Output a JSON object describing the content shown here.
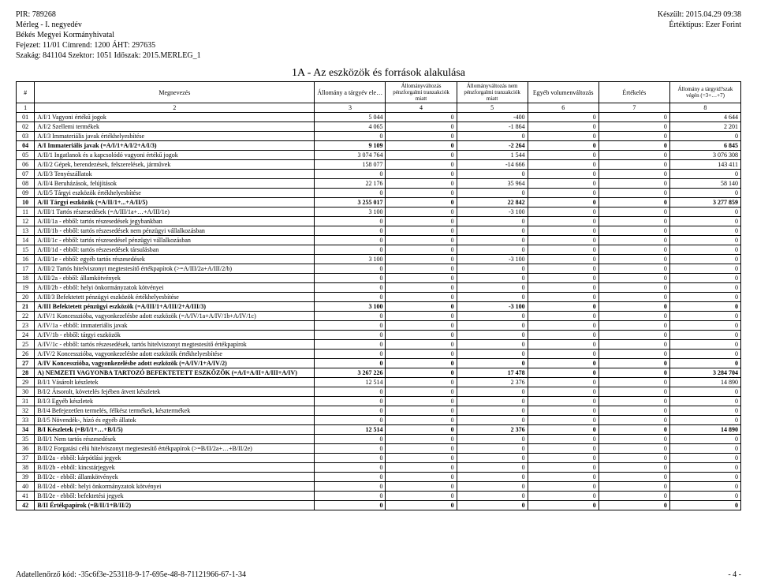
{
  "header": {
    "left": {
      "pir": "PIR: 789268",
      "merleg": "Mérleg - I. negyedév",
      "org": "Békés Megyei Kormányhivatal",
      "fejezet": "Fejezet: 11/01 Címrend: 1200 ÁHT: 297635",
      "szakag": "Szakág: 841104 Szektor: 1051 Időszak: 2015.MERLEG_1"
    },
    "right": {
      "keszult": "Készült: 2015.04.29 09:38",
      "ertektipus": "Értéktípus: Ezer Forint"
    }
  },
  "table": {
    "title": "1A - Az eszközök és források alakulása",
    "head": {
      "c1": "#",
      "c2": "Megnevezés",
      "c3": "Állomány a tárgyév elején",
      "c4": "Állományváltozás pénzforgalmi tranzakciók miatt",
      "c5": "Állományváltozás nem pénzforgalmi tranzakciók miatt",
      "c6": "Egyéb volumenváltozás",
      "c7": "Értékelés",
      "c8": "Állomány a tárgyid?szak végén (=3+…+7)"
    },
    "hnums": {
      "n1": "1",
      "n2": "2",
      "n3": "3",
      "n4": "4",
      "n5": "5",
      "n6": "6",
      "n7": "7",
      "n8": "8"
    },
    "rows": [
      {
        "id": "01",
        "desc": "A/I/1 Vagyoni értékű jogok",
        "v": [
          "5 044",
          "0",
          "-400",
          "0",
          "0",
          "4 644"
        ],
        "bold": false
      },
      {
        "id": "02",
        "desc": "A/I/2 Szellemi termékek",
        "v": [
          "4 065",
          "0",
          "-1 864",
          "0",
          "0",
          "2 201"
        ],
        "bold": false
      },
      {
        "id": "03",
        "desc": "A/I/3 Immateriális javak értékhelyesbítése",
        "v": [
          "0",
          "0",
          "0",
          "0",
          "0",
          "0"
        ],
        "bold": false
      },
      {
        "id": "04",
        "desc": "A/I Immateriális javak (=A/I/1+A/I/2+A/I/3)",
        "v": [
          "9 109",
          "0",
          "-2 264",
          "0",
          "0",
          "6 845"
        ],
        "bold": true
      },
      {
        "id": "05",
        "desc": "A/II/1 Ingatlanok és a kapcsolódó vagyoni értékű jogok",
        "v": [
          "3 074 764",
          "0",
          "1 544",
          "0",
          "0",
          "3 076 308"
        ],
        "bold": false
      },
      {
        "id": "06",
        "desc": "A/II/2 Gépek, berendezések, felszerelések, járművek",
        "v": [
          "158 077",
          "0",
          "-14 666",
          "0",
          "0",
          "143 411"
        ],
        "bold": false
      },
      {
        "id": "07",
        "desc": "A/II/3 Tenyészállatok",
        "v": [
          "0",
          "0",
          "0",
          "0",
          "0",
          "0"
        ],
        "bold": false
      },
      {
        "id": "08",
        "desc": "A/II/4 Beruházások, felújítások",
        "v": [
          "22 176",
          "0",
          "35 964",
          "0",
          "0",
          "58 140"
        ],
        "bold": false
      },
      {
        "id": "09",
        "desc": "A/II/5 Tárgyi eszközök értékhelyesbítése",
        "v": [
          "0",
          "0",
          "0",
          "0",
          "0",
          "0"
        ],
        "bold": false
      },
      {
        "id": "10",
        "desc": "A/II Tárgyi eszközök (=A/II/1+...+A/II/5)",
        "v": [
          "3 255 017",
          "0",
          "22 842",
          "0",
          "0",
          "3 277 859"
        ],
        "bold": true
      },
      {
        "id": "11",
        "desc": "A/III/1 Tartós részesedések (=A/III/1a+…+A/III/1e)",
        "v": [
          "3 100",
          "0",
          "-3 100",
          "0",
          "0",
          "0"
        ],
        "bold": false
      },
      {
        "id": "12",
        "desc": "A/III/1a - ebből: tartós részesedések jegybankban",
        "v": [
          "0",
          "0",
          "0",
          "0",
          "0",
          "0"
        ],
        "bold": false
      },
      {
        "id": "13",
        "desc": "A/III/1b - ebből: tartós részesedések nem pénzügyi vállalkozásban",
        "v": [
          "0",
          "0",
          "0",
          "0",
          "0",
          "0"
        ],
        "bold": false
      },
      {
        "id": "14",
        "desc": "A/III/1c - ebből: tartós részesedésel pénzügyi vállalkozásban",
        "v": [
          "0",
          "0",
          "0",
          "0",
          "0",
          "0"
        ],
        "bold": false
      },
      {
        "id": "15",
        "desc": "A/III/1d - ebből: tartós részesedések társulásban",
        "v": [
          "0",
          "0",
          "0",
          "0",
          "0",
          "0"
        ],
        "bold": false
      },
      {
        "id": "16",
        "desc": "A/III/1e - ebből: egyéb tartós részesedések",
        "v": [
          "3 100",
          "0",
          "-3 100",
          "0",
          "0",
          "0"
        ],
        "bold": false
      },
      {
        "id": "17",
        "desc": "A/III/2 Tartós hitelviszonyt megtestesítő értékpapírok (>=A/III/2a+A/III/2/b)",
        "v": [
          "0",
          "0",
          "0",
          "0",
          "0",
          "0"
        ],
        "bold": false
      },
      {
        "id": "18",
        "desc": "A/III/2a - ebből: államkötvények",
        "v": [
          "0",
          "0",
          "0",
          "0",
          "0",
          "0"
        ],
        "bold": false
      },
      {
        "id": "19",
        "desc": "A/III/2b - ebből: helyi önkormányzatok kötvényei",
        "v": [
          "0",
          "0",
          "0",
          "0",
          "0",
          "0"
        ],
        "bold": false
      },
      {
        "id": "20",
        "desc": "A/III/3 Befektetett pénzügyi eszközök értékhelyesbítése",
        "v": [
          "0",
          "0",
          "0",
          "0",
          "0",
          "0"
        ],
        "bold": false
      },
      {
        "id": "21",
        "desc": "A/III Befektetett pénzügyi eszközök (=A/III/1+A/III/2+A/III/3)",
        "v": [
          "3 100",
          "0",
          "-3 100",
          "0",
          "0",
          "0"
        ],
        "bold": true
      },
      {
        "id": "22",
        "desc": "A/IV/1 Koncesszióba, vagyonkezelésbe adott eszközök (=A/IV/1a+A/IV/1b+A/IV/1c)",
        "v": [
          "0",
          "0",
          "0",
          "0",
          "0",
          "0"
        ],
        "bold": false
      },
      {
        "id": "23",
        "desc": "A/IV/1a - ebből: immateriális javak",
        "v": [
          "0",
          "0",
          "0",
          "0",
          "0",
          "0"
        ],
        "bold": false
      },
      {
        "id": "24",
        "desc": "A/IV/1b - ebből: tárgyi eszközök",
        "v": [
          "0",
          "0",
          "0",
          "0",
          "0",
          "0"
        ],
        "bold": false
      },
      {
        "id": "25",
        "desc": "A/IV/1c - ebből: tartós részesedések, tartós hitelviszonyt megtestesítő értékpapírok",
        "v": [
          "0",
          "0",
          "0",
          "0",
          "0",
          "0"
        ],
        "bold": false
      },
      {
        "id": "26",
        "desc": "A/IV/2 Koncesszióba, vagyonkezelésbe adott eszközök értékhelyesbítése",
        "v": [
          "0",
          "0",
          "0",
          "0",
          "0",
          "0"
        ],
        "bold": false
      },
      {
        "id": "27",
        "desc": "A/IV Koncesszióba, vagyonkezelésbe adott eszközök (=A/IV/1+A/IV/2)",
        "v": [
          "0",
          "0",
          "0",
          "0",
          "0",
          "0"
        ],
        "bold": true
      },
      {
        "id": "28",
        "desc": "A) NEMZETI VAGYONBA TARTOZÓ BEFEKTETETT ESZKÖZÖK (=A/I+A/II+A/III+A/IV)",
        "v": [
          "3 267 226",
          "0",
          "17 478",
          "0",
          "0",
          "3 284 704"
        ],
        "bold": true
      },
      {
        "id": "29",
        "desc": "B/I/1 Vásárolt készletek",
        "v": [
          "12 514",
          "0",
          "2 376",
          "0",
          "0",
          "14 890"
        ],
        "bold": false
      },
      {
        "id": "30",
        "desc": "B/I/2 Átsorolt, követelés fejében átvett készletek",
        "v": [
          "0",
          "0",
          "0",
          "0",
          "0",
          "0"
        ],
        "bold": false
      },
      {
        "id": "31",
        "desc": "B/I/3 Egyéb készletek",
        "v": [
          "0",
          "0",
          "0",
          "0",
          "0",
          "0"
        ],
        "bold": false
      },
      {
        "id": "32",
        "desc": "B/I/4 Befejezetlen termelés, félkész termékek, késztermékek",
        "v": [
          "0",
          "0",
          "0",
          "0",
          "0",
          "0"
        ],
        "bold": false
      },
      {
        "id": "33",
        "desc": "B/I/5 Növendék-, hízó és egyéb állatok",
        "v": [
          "0",
          "0",
          "0",
          "0",
          "0",
          "0"
        ],
        "bold": false
      },
      {
        "id": "34",
        "desc": "B/I Készletek (=B/I/1+…+B/I/5)",
        "v": [
          "12 514",
          "0",
          "2 376",
          "0",
          "0",
          "14 890"
        ],
        "bold": true
      },
      {
        "id": "35",
        "desc": "B/II/1 Nem tartós részesedések",
        "v": [
          "0",
          "0",
          "0",
          "0",
          "0",
          "0"
        ],
        "bold": false
      },
      {
        "id": "36",
        "desc": "B/II/2 Forgatási célú hitelviszonyt megtestesítő értékpapírok (>=B/II/2a+…+B/II/2e)",
        "v": [
          "0",
          "0",
          "0",
          "0",
          "0",
          "0"
        ],
        "bold": false
      },
      {
        "id": "37",
        "desc": "B/II/2a - ebből: kárpótlási jegyek",
        "v": [
          "0",
          "0",
          "0",
          "0",
          "0",
          "0"
        ],
        "bold": false
      },
      {
        "id": "38",
        "desc": "B/II/2b - ebből: kincstárjegyek",
        "v": [
          "0",
          "0",
          "0",
          "0",
          "0",
          "0"
        ],
        "bold": false
      },
      {
        "id": "39",
        "desc": "B/II/2c - ebből: államkötvények",
        "v": [
          "0",
          "0",
          "0",
          "0",
          "0",
          "0"
        ],
        "bold": false
      },
      {
        "id": "40",
        "desc": "B/II/2d - ebből: helyi önkormányzatok kötvényei",
        "v": [
          "0",
          "0",
          "0",
          "0",
          "0",
          "0"
        ],
        "bold": false
      },
      {
        "id": "41",
        "desc": "B/II/2e - ebből: befektetési jegyek",
        "v": [
          "0",
          "0",
          "0",
          "0",
          "0",
          "0"
        ],
        "bold": false
      },
      {
        "id": "42",
        "desc": "B/II Értékpapírok (=B/II/1+B/II/2)",
        "v": [
          "0",
          "0",
          "0",
          "0",
          "0",
          "0"
        ],
        "bold": true
      }
    ]
  },
  "footer": {
    "left": "Adatellenőrző kód: -35c6f3e-253118-9-17-695e-48-8-71121966-67-1-34",
    "right": "- 4 -"
  }
}
